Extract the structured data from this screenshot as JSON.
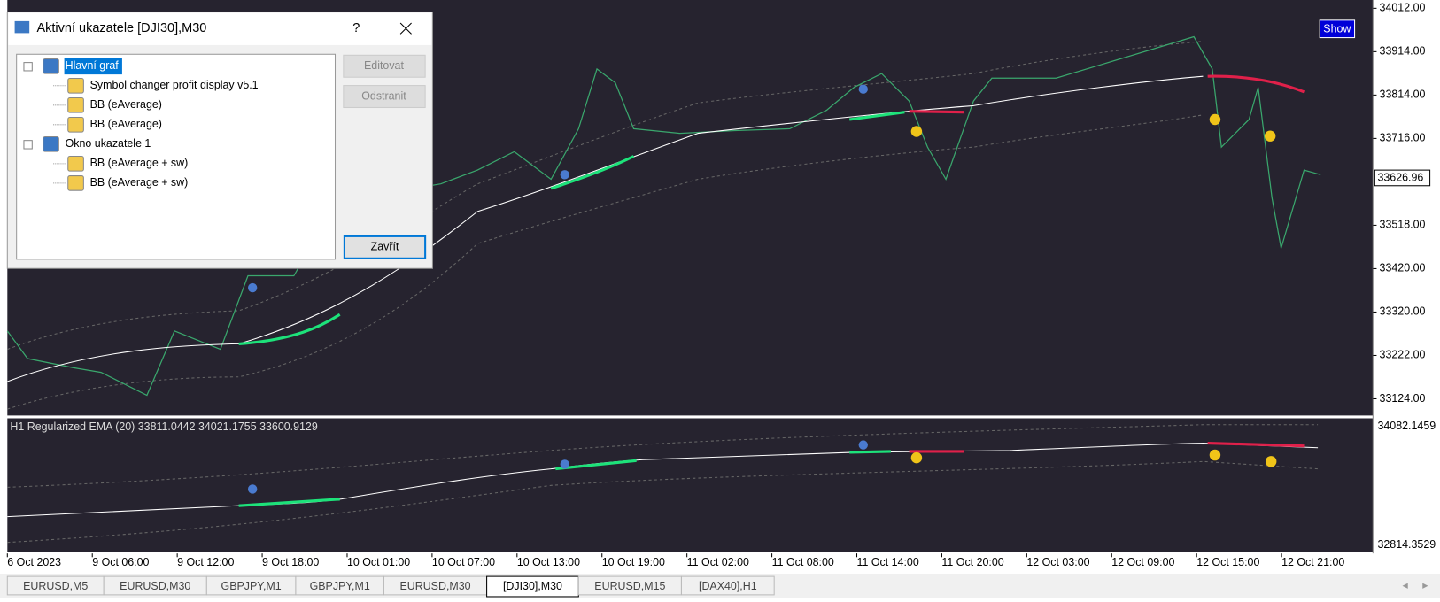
{
  "dialog": {
    "title": "Aktivní ukazatele [DJI30],M30",
    "help": "?",
    "tree": [
      {
        "label": "Hlavní graf",
        "level": 0
      },
      {
        "label": "Symbol changer profit display v5.1",
        "level": 1
      },
      {
        "label": "BB (eAverage)",
        "level": 1
      },
      {
        "label": "BB (eAverage)",
        "level": 1
      },
      {
        "label": "Okno ukazatele 1",
        "level": 0
      },
      {
        "label": "BB (eAverage + sw)",
        "level": 1
      },
      {
        "label": "BB (eAverage + sw)",
        "level": 1
      }
    ],
    "buttons": {
      "edit": "Editovat",
      "remove": "Odstranit",
      "close": "Zavřít"
    }
  },
  "chart": {
    "show_button": "Show",
    "price_labels": [
      "34012.00",
      "33914.00",
      "33814.00",
      "33716.00",
      "",
      "33518.00",
      "33420.00",
      "33320.00",
      "33222.00",
      "33124.00"
    ],
    "current_price": "33626.96",
    "indicator_label": "H1  Regularized EMA (20) 33811.0442 34021.1755 33600.9129",
    "sub_labels": [
      "34082.1459",
      "32814.3529"
    ],
    "time_labels": [
      "6 Oct 2023",
      "9 Oct 06:00",
      "9 Oct 12:00",
      "9 Oct 18:00",
      "10 Oct 01:00",
      "10 Oct 07:00",
      "10 Oct 13:00",
      "10 Oct 19:00",
      "11 Oct 02:00",
      "11 Oct 08:00",
      "11 Oct 14:00",
      "11 Oct 20:00",
      "12 Oct 03:00",
      "12 Oct 09:00",
      "12 Oct 15:00",
      "12 Oct 21:00"
    ]
  },
  "tabs": {
    "items": [
      "EURUSD,M5",
      "EURUSD,M30",
      "GBPJPY,M1",
      "GBPJPY,M1",
      "EURUSD,M30",
      "[DJI30],M30",
      "EURUSD,M15",
      "[DAX40],H1"
    ],
    "active": 5
  }
}
